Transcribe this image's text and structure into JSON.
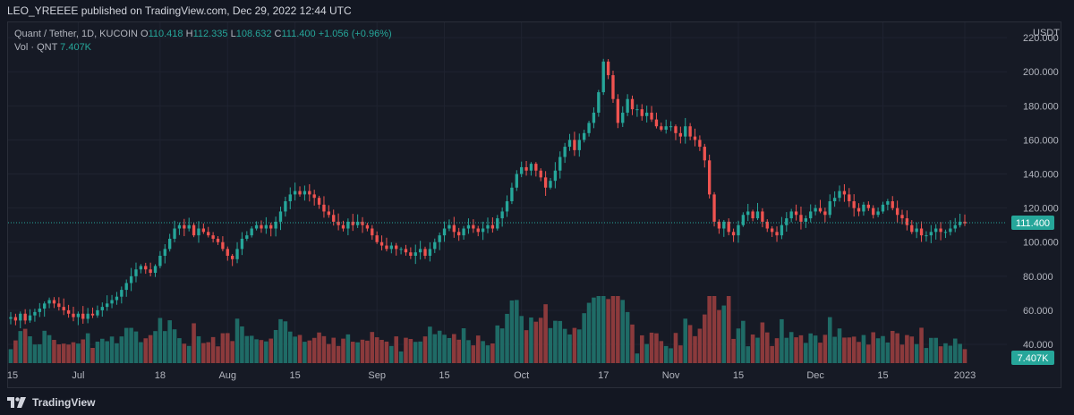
{
  "header": {
    "publisher": "LEO_YREEEE published on TradingView.com, Dec 29, 2022 12:44 UTC"
  },
  "legend": {
    "symbol": "Quant / Tether, 1D, KUCOIN",
    "o_label": "O",
    "o_value": "110.418",
    "h_label": "H",
    "h_value": "112.335",
    "l_label": "L",
    "l_value": "108.632",
    "c_label": "C",
    "c_value": "111.400",
    "change": "+1.056 (+0.96%)",
    "vol_label": "Vol · QNT",
    "vol_value": "7.407K"
  },
  "footer": {
    "brand": "TradingView"
  },
  "colors": {
    "up": "#26a69a",
    "down": "#ef5350",
    "vol_up": "#1f6b66",
    "vol_down": "#8b3a3c",
    "badge": "#26a69a"
  },
  "chart_data": {
    "type": "candlestick",
    "currency_label": "USDT",
    "y_ticks": [
      "220.000",
      "200.000",
      "180.000",
      "160.000",
      "140.000",
      "120.000",
      "100.000",
      "80.000",
      "60.000",
      "40.000"
    ],
    "y_tick_values": [
      220,
      200,
      180,
      160,
      140,
      120,
      100,
      80,
      60,
      40
    ],
    "ylim": [
      29,
      229
    ],
    "x_ticks": [
      "15",
      "Jul",
      "18",
      "Aug",
      "15",
      "Sep",
      "15",
      "Oct",
      "17",
      "Nov",
      "15",
      "Dec",
      "15",
      "2023"
    ],
    "x_tick_days": [
      -2,
      14,
      31,
      45,
      59,
      76,
      90,
      106,
      123,
      137,
      151,
      167,
      181,
      198
    ],
    "last_price": "111.400",
    "last_price_value": 111.4,
    "last_volume": "7.407K",
    "volume_max": 80,
    "closes": [
      56,
      54,
      58,
      54,
      57,
      59,
      61,
      64,
      66,
      64,
      62,
      60,
      58,
      56,
      58,
      55,
      58,
      57,
      60,
      62,
      64,
      66,
      68,
      72,
      76,
      80,
      84,
      86,
      84,
      82,
      86,
      92,
      96,
      102,
      108,
      110,
      108,
      110,
      104,
      108,
      106,
      104,
      102,
      100,
      96,
      92,
      90,
      96,
      102,
      104,
      108,
      110,
      108,
      110,
      108,
      112,
      118,
      124,
      128,
      130,
      128,
      130,
      128,
      126,
      122,
      118,
      116,
      112,
      110,
      108,
      112,
      110,
      112,
      110,
      108,
      104,
      100,
      98,
      96,
      98,
      96,
      96,
      94,
      92,
      94,
      96,
      92,
      96,
      100,
      104,
      108,
      110,
      106,
      104,
      108,
      110,
      108,
      106,
      108,
      110,
      108,
      114,
      118,
      124,
      132,
      140,
      144,
      142,
      146,
      142,
      138,
      132,
      136,
      142,
      150,
      156,
      160,
      154,
      160,
      164,
      170,
      176,
      188,
      206,
      198,
      184,
      170,
      176,
      184,
      178,
      178,
      174,
      176,
      172,
      168,
      166,
      168,
      168,
      164,
      162,
      168,
      162,
      160,
      156,
      148,
      128,
      112,
      108,
      112,
      106,
      104,
      110,
      116,
      118,
      114,
      118,
      112,
      108,
      106,
      104,
      110,
      114,
      118,
      116,
      112,
      114,
      118,
      120,
      118,
      116,
      124,
      126,
      130,
      128,
      124,
      120,
      118,
      122,
      120,
      116,
      118,
      122,
      124,
      120,
      116,
      114,
      110,
      106,
      108,
      104,
      104,
      106,
      108,
      106,
      106,
      108,
      110,
      112,
      111
    ]
  }
}
